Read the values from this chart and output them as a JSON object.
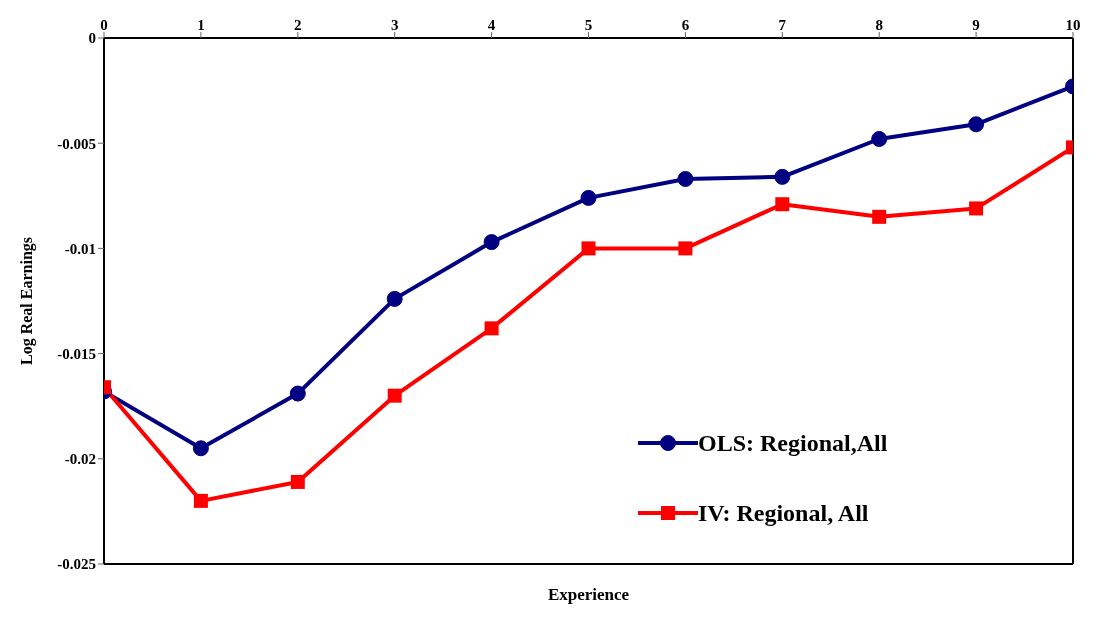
{
  "chart_data": {
    "type": "line",
    "xlabel": "Experience",
    "ylabel": "Log Real Earnings",
    "x": [
      0,
      1,
      2,
      3,
      4,
      5,
      6,
      7,
      8,
      9,
      10
    ],
    "series": [
      {
        "name": "OLS: Regional,All",
        "color": "#000080",
        "marker": "circle",
        "values": [
          -0.0168,
          -0.0195,
          -0.0169,
          -0.0124,
          -0.0097,
          -0.0076,
          -0.0067,
          -0.0066,
          -0.0048,
          -0.0041,
          -0.0023
        ]
      },
      {
        "name": "IV: Regional, All",
        "color": "#ff0000",
        "marker": "square",
        "values": [
          -0.0166,
          -0.022,
          -0.0211,
          -0.017,
          -0.0138,
          -0.01,
          -0.01,
          -0.0079,
          -0.0085,
          -0.0081,
          -0.0052
        ]
      }
    ],
    "xlim": [
      0,
      10
    ],
    "xticks": [
      0,
      1,
      2,
      3,
      4,
      5,
      6,
      7,
      8,
      9,
      10
    ],
    "ylim": [
      -0.025,
      0
    ],
    "yticks": [
      -0.025,
      -0.02,
      -0.015,
      -0.01,
      -0.005,
      0
    ],
    "grid": false,
    "legend": "bottom right",
    "line_style": "solid"
  }
}
